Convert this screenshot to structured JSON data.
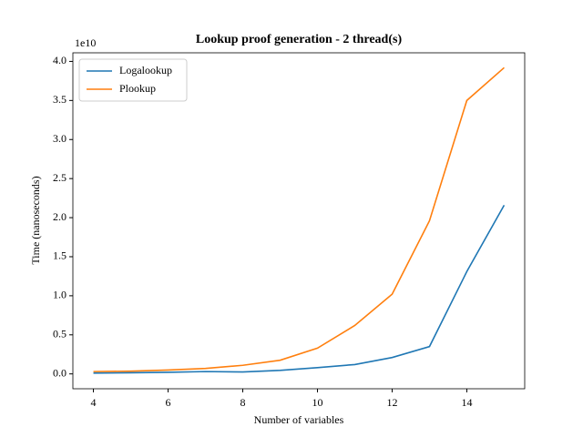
{
  "chart_data": {
    "type": "line",
    "title": "Lookup proof generation - 2 thread(s)",
    "xlabel": "Number of variables",
    "ylabel": "Time (nanoseconds)",
    "y_offset_label": "1e10",
    "x": [
      4,
      5,
      6,
      7,
      8,
      9,
      10,
      11,
      12,
      13,
      14,
      15
    ],
    "series": [
      {
        "name": "Logalookup",
        "color": "#1f77b4",
        "values": [
          0.01,
          0.015,
          0.02,
          0.03,
          0.025,
          0.045,
          0.08,
          0.12,
          0.21,
          0.35,
          1.31,
          2.16
        ]
      },
      {
        "name": "Plookup",
        "color": "#ff7f0e",
        "values": [
          0.03,
          0.035,
          0.05,
          0.07,
          0.11,
          0.175,
          0.33,
          0.62,
          1.02,
          1.96,
          3.5,
          3.92
        ]
      }
    ],
    "xlim": [
      3.45,
      15.55
    ],
    "xticks": [
      4,
      6,
      8,
      10,
      12,
      14
    ],
    "ylim": [
      -0.19,
      4.11
    ],
    "yticks": [
      {
        "value": 0,
        "label": "0.0"
      },
      {
        "value": 0.5,
        "label": "0.5"
      },
      {
        "value": 1,
        "label": "1.0"
      },
      {
        "value": 1.5,
        "label": "1.5"
      },
      {
        "value": 2,
        "label": "2.0"
      },
      {
        "value": 2.5,
        "label": "2.5"
      },
      {
        "value": 3,
        "label": "3.0"
      },
      {
        "value": 3.5,
        "label": "3.5"
      },
      {
        "value": 4,
        "label": "4.0"
      }
    ],
    "legend": "upper-left",
    "grid": false
  }
}
